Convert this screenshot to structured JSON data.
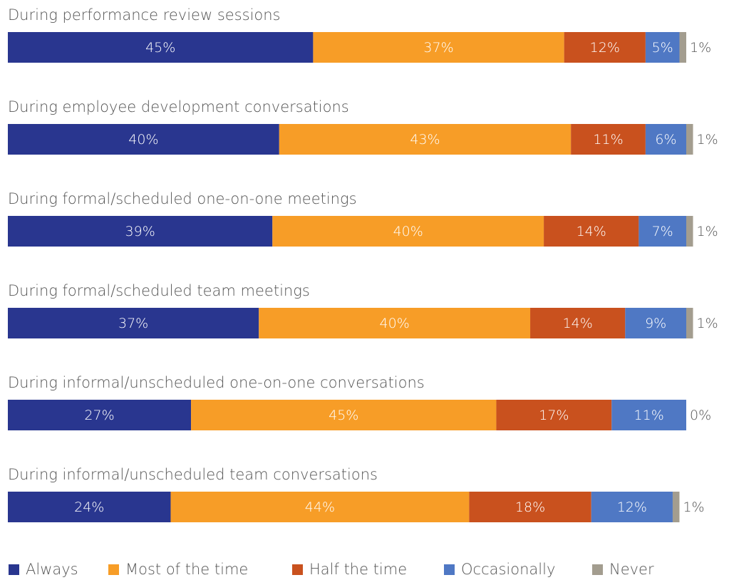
{
  "chart_data": {
    "type": "stacked_bar_horizontal",
    "categories": [
      "During performance review sessions",
      "During employee development conversations",
      "During formal/scheduled one-on-one meetings",
      "During formal/scheduled team meetings",
      "During informal/unscheduled one-on-one conversations",
      "During informal/unscheduled team conversations"
    ],
    "series": [
      {
        "name": "Always",
        "color": "#29368f",
        "values": [
          45,
          40,
          39,
          37,
          27,
          24
        ],
        "value_labels": [
          "45%",
          "40%",
          "39%",
          "37%",
          "27%",
          "24%"
        ]
      },
      {
        "name": "Most of the time",
        "color": "#f79d27",
        "values": [
          37,
          43,
          40,
          40,
          45,
          44
        ],
        "value_labels": [
          "37%",
          "43%",
          "40%",
          "40%",
          "45%",
          "44%"
        ]
      },
      {
        "name": "Half the time",
        "color": "#c9511e",
        "values": [
          12,
          11,
          14,
          14,
          17,
          18
        ],
        "value_labels": [
          "12%",
          "11%",
          "14%",
          "14%",
          "17%",
          "18%"
        ]
      },
      {
        "name": "Occasionally",
        "color": "#4f78c4",
        "values": [
          5,
          6,
          7,
          9,
          11,
          12
        ],
        "value_labels": [
          "5%",
          "6%",
          "7%",
          "9%",
          "11%",
          "12%"
        ]
      },
      {
        "name": "Never",
        "color": "#a39d8f",
        "values": [
          1,
          1,
          1,
          1,
          0,
          1
        ],
        "value_labels": [
          "1%",
          "1%",
          "1%",
          "1%",
          "0%",
          "1%"
        ]
      }
    ],
    "legend": "bottom"
  }
}
